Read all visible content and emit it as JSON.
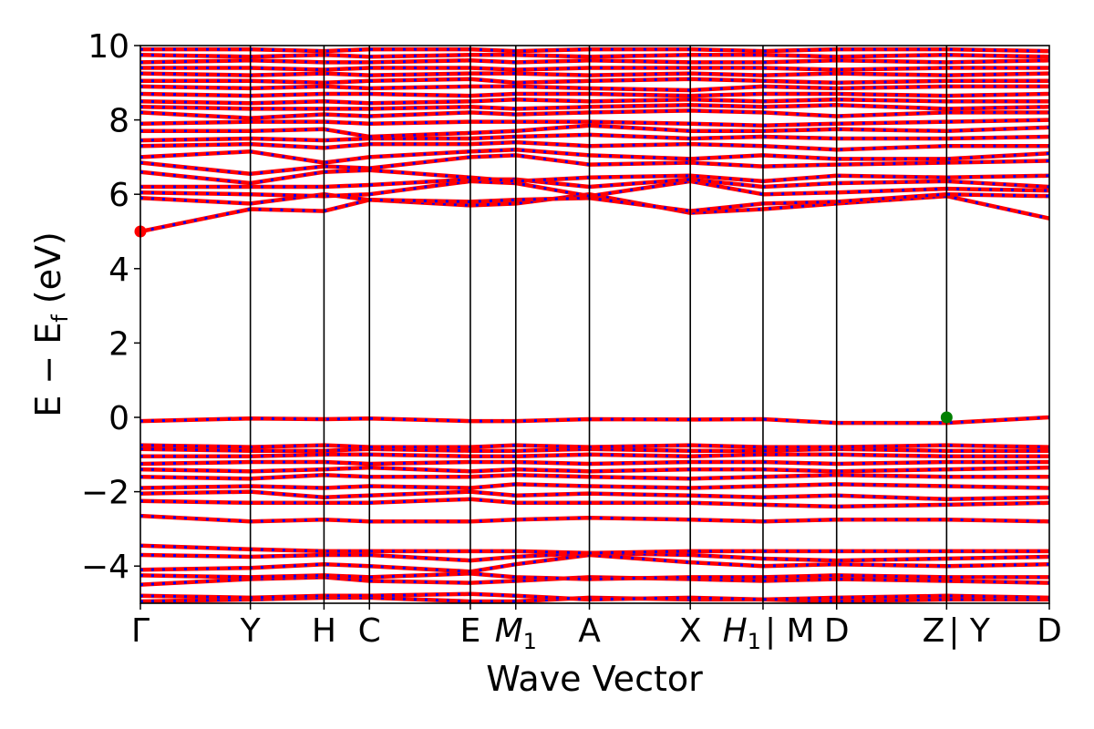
{
  "chart_data": {
    "type": "line",
    "title": "",
    "xlabel": "Wave Vector",
    "ylabel": "E − E",
    "ylabel_sub": "f",
    "ylabel_unit": " (eV)",
    "ylim": [
      -5,
      10
    ],
    "yticks": [
      -4,
      -2,
      0,
      2,
      4,
      6,
      8,
      10
    ],
    "ytick_labels": [
      "−4",
      "−2",
      "0",
      "2",
      "4",
      "6",
      "8",
      "10"
    ],
    "xlim": [
      0,
      1
    ],
    "kpoints": [
      {
        "label": "Γ",
        "x": 0.0
      },
      {
        "label": "Y",
        "x": 0.121
      },
      {
        "label": "H",
        "x": 0.202
      },
      {
        "label": "C",
        "x": 0.252
      },
      {
        "label": "E",
        "x": 0.363
      },
      {
        "label": "M",
        "sub": "1",
        "x": 0.413
      },
      {
        "label": "A",
        "x": 0.494
      },
      {
        "label": "X",
        "x": 0.605
      },
      {
        "label": "H",
        "sub": "1",
        "x": 0.685
      },
      {
        "label": "| M",
        "x": 0.685
      },
      {
        "label": "D",
        "x": 0.766
      },
      {
        "label": "Z",
        "x": 0.887
      },
      {
        "label": "| Y",
        "x": 0.887
      },
      {
        "label": "D",
        "x": 1.0
      }
    ],
    "grid": false,
    "legend": "none",
    "markers": [
      {
        "name": "conduction-band-minimum",
        "x": 0.0,
        "y": 5.0,
        "color": "#ff0000"
      },
      {
        "name": "valence-band-maximum",
        "x": 0.887,
        "y": 0.0,
        "color": "#008000"
      }
    ],
    "band_colors": {
      "primary": "#ff0000",
      "secondary": "#0000ff"
    },
    "bands": [
      [
        -4.95,
        -4.9,
        -4.85,
        -4.85,
        -4.95,
        -4.95,
        -4.85,
        -4.9,
        -4.9,
        -4.95,
        -4.9,
        -4.9,
        -4.95,
        -4.95
      ],
      [
        -4.8,
        -4.85,
        -4.8,
        -4.8,
        -4.75,
        -4.8,
        -4.9,
        -4.85,
        -4.9,
        -4.85,
        -4.8,
        -4.85,
        -4.8,
        -4.75
      ],
      [
        -4.5,
        -4.35,
        -4.3,
        -4.4,
        -4.45,
        -4.4,
        -4.3,
        -4.35,
        -4.4,
        -4.35,
        -4.4,
        -4.45,
        -4.4,
        -4.35
      ],
      [
        -4.25,
        -4.3,
        -4.25,
        -4.3,
        -4.2,
        -4.3,
        -4.35,
        -4.3,
        -4.3,
        -4.25,
        -4.3,
        -4.3,
        -4.3,
        -4.3
      ],
      [
        -4.1,
        -4.05,
        -3.95,
        -4.0,
        -4.15,
        -3.95,
        -3.7,
        -3.9,
        -4.0,
        -3.95,
        -4.0,
        -3.95,
        -4.0,
        -3.95
      ],
      [
        -3.7,
        -3.75,
        -3.7,
        -3.7,
        -3.85,
        -3.75,
        -3.65,
        -3.7,
        -3.8,
        -3.85,
        -3.8,
        -3.75,
        -3.7,
        -3.75
      ],
      [
        -3.45,
        -3.55,
        -3.6,
        -3.6,
        -3.6,
        -3.6,
        -3.65,
        -3.6,
        -3.6,
        -3.6,
        -3.6,
        -3.6,
        -3.55,
        -3.6
      ],
      [
        -2.65,
        -2.8,
        -2.75,
        -2.8,
        -2.8,
        -2.75,
        -2.7,
        -2.75,
        -2.8,
        -2.75,
        -2.75,
        -2.8,
        -2.75,
        -2.75
      ],
      [
        -2.25,
        -2.3,
        -2.3,
        -2.3,
        -2.2,
        -2.3,
        -2.3,
        -2.3,
        -2.35,
        -2.4,
        -2.35,
        -2.3,
        -2.3,
        -2.3
      ],
      [
        -2.05,
        -2.0,
        -2.15,
        -2.1,
        -2.0,
        -2.1,
        -2.05,
        -2.1,
        -2.15,
        -2.1,
        -2.2,
        -2.15,
        -2.1,
        -2.05
      ],
      [
        -1.9,
        -1.85,
        -1.9,
        -1.85,
        -1.9,
        -1.8,
        -1.85,
        -1.9,
        -1.85,
        -1.8,
        -1.85,
        -1.9,
        -1.85,
        -1.8
      ],
      [
        -1.6,
        -1.65,
        -1.55,
        -1.6,
        -1.6,
        -1.55,
        -1.6,
        -1.65,
        -1.6,
        -1.55,
        -1.6,
        -1.6,
        -1.55,
        -1.6
      ],
      [
        -1.4,
        -1.45,
        -1.4,
        -1.35,
        -1.45,
        -1.4,
        -1.45,
        -1.4,
        -1.4,
        -1.45,
        -1.4,
        -1.35,
        -1.4,
        -1.4
      ],
      [
        -1.25,
        -1.2,
        -1.2,
        -1.25,
        -1.2,
        -1.2,
        -1.25,
        -1.2,
        -1.2,
        -1.25,
        -1.2,
        -1.2,
        -1.25,
        -1.2
      ],
      [
        -1.05,
        -1.05,
        -1.0,
        -1.0,
        -1.05,
        -1.05,
        -1.0,
        -1.05,
        -1.0,
        -1.0,
        -1.05,
        -1.05,
        -1.0,
        -1.0
      ],
      [
        -0.85,
        -0.9,
        -0.9,
        -0.85,
        -0.9,
        -0.9,
        -0.85,
        -0.9,
        -0.9,
        -0.85,
        -0.9,
        -0.9,
        -0.9,
        -0.85
      ],
      [
        -0.75,
        -0.8,
        -0.75,
        -0.8,
        -0.8,
        -0.75,
        -0.8,
        -0.75,
        -0.8,
        -0.8,
        -0.75,
        -0.8,
        -0.75,
        -0.8
      ],
      [
        -0.1,
        -0.03,
        -0.05,
        -0.03,
        -0.1,
        -0.1,
        -0.05,
        -0.06,
        -0.05,
        -0.15,
        -0.15,
        0.0,
        -0.02,
        -0.15
      ],
      [
        5.0,
        5.6,
        5.55,
        5.85,
        5.7,
        5.75,
        6.0,
        5.5,
        5.6,
        5.75,
        5.95,
        5.35,
        5.9,
        5.85
      ],
      [
        5.9,
        5.75,
        6.0,
        5.85,
        5.8,
        5.85,
        5.9,
        5.55,
        5.75,
        5.8,
        6.0,
        5.95,
        5.95,
        6.0
      ],
      [
        6.05,
        6.0,
        5.95,
        6.0,
        6.35,
        6.3,
        5.95,
        6.35,
        6.0,
        6.05,
        6.15,
        6.1,
        6.05,
        6.05
      ],
      [
        6.2,
        6.2,
        6.2,
        6.25,
        6.4,
        6.4,
        6.2,
        6.4,
        6.2,
        6.3,
        6.35,
        6.2,
        6.2,
        6.55
      ],
      [
        6.6,
        6.3,
        6.6,
        6.65,
        6.45,
        6.35,
        6.45,
        6.5,
        6.35,
        6.5,
        6.45,
        6.5,
        6.4,
        6.6
      ],
      [
        6.85,
        6.55,
        6.75,
        6.7,
        7.0,
        7.05,
        6.8,
        6.85,
        6.75,
        6.8,
        6.85,
        6.9,
        6.6,
        6.9
      ],
      [
        7.0,
        7.15,
        6.85,
        7.0,
        7.15,
        7.2,
        7.05,
        6.95,
        7.05,
        6.95,
        6.95,
        7.1,
        7.05,
        7.15
      ],
      [
        7.3,
        7.35,
        7.25,
        7.35,
        7.35,
        7.4,
        7.3,
        7.35,
        7.3,
        7.2,
        7.3,
        7.3,
        7.25,
        7.3
      ],
      [
        7.45,
        7.5,
        7.45,
        7.5,
        7.5,
        7.55,
        7.6,
        7.5,
        7.55,
        7.5,
        7.5,
        7.55,
        7.5,
        7.45
      ],
      [
        7.7,
        7.7,
        7.75,
        7.55,
        7.65,
        7.7,
        7.85,
        7.7,
        7.7,
        7.75,
        7.7,
        7.8,
        7.75,
        7.7
      ],
      [
        7.9,
        7.95,
        7.95,
        7.9,
        7.95,
        7.95,
        7.95,
        7.9,
        7.85,
        7.9,
        7.95,
        8.0,
        7.95,
        7.9
      ],
      [
        8.2,
        8.05,
        8.15,
        8.1,
        8.2,
        8.15,
        8.2,
        8.25,
        8.2,
        8.1,
        8.2,
        8.2,
        8.15,
        8.1
      ],
      [
        8.35,
        8.3,
        8.3,
        8.3,
        8.35,
        8.3,
        8.35,
        8.4,
        8.35,
        8.4,
        8.3,
        8.35,
        8.35,
        8.35
      ],
      [
        8.5,
        8.45,
        8.5,
        8.45,
        8.5,
        8.55,
        8.5,
        8.55,
        8.5,
        8.55,
        8.5,
        8.5,
        8.5,
        8.5
      ],
      [
        8.7,
        8.65,
        8.7,
        8.7,
        8.65,
        8.7,
        8.7,
        8.65,
        8.7,
        8.7,
        8.65,
        8.7,
        8.7,
        8.65
      ],
      [
        8.9,
        8.85,
        8.9,
        8.85,
        8.9,
        8.9,
        8.85,
        8.8,
        8.9,
        8.85,
        8.9,
        8.9,
        8.85,
        8.9
      ],
      [
        9.05,
        9.05,
        9.0,
        9.05,
        9.1,
        9.0,
        9.05,
        9.1,
        9.05,
        9.0,
        9.05,
        9.05,
        9.0,
        9.05
      ],
      [
        9.25,
        9.2,
        9.25,
        9.2,
        9.25,
        9.25,
        9.2,
        9.25,
        9.2,
        9.25,
        9.2,
        9.25,
        9.25,
        9.2
      ],
      [
        9.4,
        9.4,
        9.35,
        9.4,
        9.4,
        9.35,
        9.4,
        9.4,
        9.4,
        9.35,
        9.4,
        9.4,
        9.35,
        9.4
      ],
      [
        9.55,
        9.6,
        9.55,
        9.55,
        9.6,
        9.55,
        9.6,
        9.55,
        9.55,
        9.6,
        9.55,
        9.6,
        9.55,
        9.55
      ],
      [
        9.75,
        9.7,
        9.75,
        9.7,
        9.75,
        9.75,
        9.7,
        9.75,
        9.75,
        9.7,
        9.75,
        9.7,
        9.75,
        9.75
      ],
      [
        9.9,
        9.9,
        9.85,
        9.9,
        9.9,
        9.85,
        9.9,
        9.9,
        9.85,
        9.9,
        9.9,
        9.85,
        9.9,
        9.9
      ]
    ]
  }
}
